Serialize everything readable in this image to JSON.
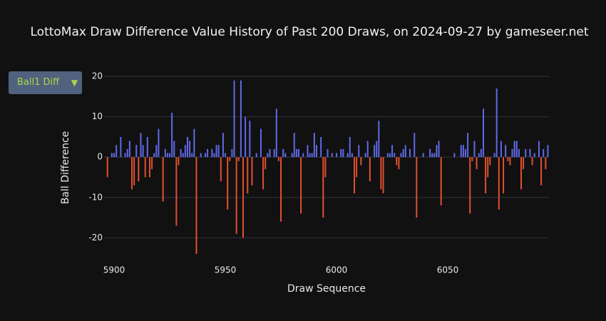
{
  "chart_data": {
    "type": "bar",
    "title": "LottoMax Draw Difference Value History of Past 200 Draws, on 2024-09-27 by gameseer.net",
    "xlabel": "Draw Sequence",
    "ylabel": "Ball Difference",
    "dropdown": "Ball1 Diff",
    "positive_color": "#5f6ae8",
    "negative_color": "#e0502e",
    "x": [
      5896,
      5897,
      5898,
      5899,
      5900,
      5901,
      5902,
      5903,
      5904,
      5905,
      5906,
      5907,
      5908,
      5909,
      5910,
      5911,
      5912,
      5913,
      5914,
      5915,
      5916,
      5917,
      5918,
      5919,
      5920,
      5921,
      5922,
      5923,
      5924,
      5925,
      5926,
      5927,
      5928,
      5929,
      5930,
      5931,
      5932,
      5933,
      5934,
      5935,
      5936,
      5937,
      5938,
      5939,
      5940,
      5941,
      5942,
      5943,
      5944,
      5945,
      5946,
      5947,
      5948,
      5949,
      5950,
      5951,
      5952,
      5953,
      5954,
      5955,
      5956,
      5957,
      5958,
      5959,
      5960,
      5961,
      5962,
      5963,
      5964,
      5965,
      5966,
      5967,
      5968,
      5969,
      5970,
      5971,
      5972,
      5973,
      5974,
      5975,
      5976,
      5977,
      5978,
      5979,
      5980,
      5981,
      5982,
      5983,
      5984,
      5985,
      5986,
      5987,
      5988,
      5989,
      5990,
      5991,
      5992,
      5993,
      5994,
      5995,
      5996,
      5997,
      5998,
      5999,
      6000,
      6001,
      6002,
      6003,
      6004,
      6005,
      6006,
      6007,
      6008,
      6009,
      6010,
      6011,
      6012,
      6013,
      6014,
      6015,
      6016,
      6017,
      6018,
      6019,
      6020,
      6021,
      6022,
      6023,
      6024,
      6025,
      6026,
      6027,
      6028,
      6029,
      6030,
      6031,
      6032,
      6033,
      6034,
      6035,
      6036,
      6037,
      6038,
      6039,
      6040,
      6041,
      6042,
      6043,
      6044,
      6045,
      6046,
      6047,
      6048,
      6049,
      6050,
      6051,
      6052,
      6053,
      6054,
      6055,
      6056,
      6057,
      6058,
      6059,
      6060,
      6061,
      6062,
      6063,
      6064,
      6065,
      6066,
      6067,
      6068,
      6069,
      6070,
      6071,
      6072,
      6073,
      6074,
      6075,
      6076,
      6077,
      6078,
      6079,
      6080,
      6081,
      6082,
      6083,
      6084,
      6085,
      6086,
      6087,
      6088,
      6089,
      6090,
      6091,
      6092,
      6093,
      6094,
      6095
    ],
    "values": [
      0,
      -5,
      0,
      1,
      1,
      3,
      0,
      5,
      0,
      1,
      2,
      4,
      -8,
      -7,
      3,
      -6,
      6,
      3,
      -5,
      5,
      -5,
      -3,
      1,
      3,
      7,
      0,
      -11,
      2,
      1,
      1,
      11,
      4,
      -17,
      -2,
      2,
      1,
      3,
      5,
      4,
      1,
      7,
      -24,
      0,
      1,
      0,
      1,
      2,
      0,
      2,
      1,
      3,
      3,
      -6,
      6,
      1,
      -13,
      -1,
      2,
      19,
      -19,
      -1,
      19,
      -20,
      10,
      -9,
      9,
      -7,
      0,
      1,
      0,
      7,
      -8,
      -3,
      1,
      2,
      0,
      2,
      12,
      -1,
      -16,
      2,
      1,
      0,
      0,
      1,
      6,
      2,
      2,
      -14,
      1,
      0,
      3,
      1,
      1,
      6,
      3,
      0,
      5,
      -15,
      -5,
      2,
      0,
      1,
      0,
      1,
      0,
      2,
      2,
      0,
      1,
      5,
      1,
      -9,
      -5,
      3,
      -2,
      0,
      1,
      4,
      -6,
      0,
      3,
      4,
      9,
      -8,
      -9,
      0,
      1,
      1,
      3,
      1,
      -2,
      -3,
      1,
      2,
      3,
      0,
      2,
      0,
      6,
      -15,
      0,
      0,
      1,
      0,
      0,
      2,
      1,
      1,
      3,
      4,
      -12,
      0,
      0,
      0,
      0,
      0,
      1,
      0,
      0,
      3,
      3,
      2,
      6,
      -14,
      -1,
      4,
      -3,
      1,
      2,
      12,
      -9,
      -5,
      -2,
      0,
      1,
      17,
      -13,
      4,
      -9,
      3,
      -1,
      -2,
      2,
      4,
      4,
      2,
      -8,
      -3,
      2,
      0,
      2,
      -2,
      1,
      0,
      4,
      -7,
      2,
      -3,
      3
    ],
    "xlim": [
      5895.5,
      6095.5
    ],
    "xticks": [
      5900,
      5950,
      6000,
      6050
    ],
    "ylim": [
      -25.6,
      24.8
    ],
    "yticks": [
      -20,
      -10,
      0,
      10,
      20
    ],
    "grid": true
  }
}
